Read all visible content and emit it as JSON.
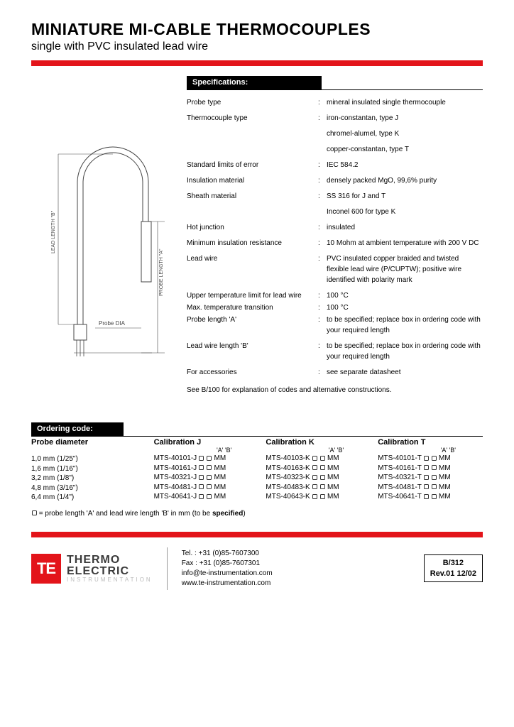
{
  "title": "MINIATURE MI-CABLE THERMOCOUPLES",
  "subtitle": "single with PVC insulated lead wire",
  "diagram": {
    "lead_label": "LEAD LENGTH \"B\"",
    "probe_label": "PROBE LENGTH \"A\"",
    "dia_label": "Probe DIA"
  },
  "specs": {
    "heading": "Specifications:",
    "rows": [
      {
        "label": "Probe type",
        "value": "mineral insulated single thermocouple"
      },
      {
        "label": "Thermocouple type",
        "value": "iron-constantan, type J"
      },
      {
        "label": "",
        "value": "chromel-alumel, type K"
      },
      {
        "label": "",
        "value": "copper-constantan, type T"
      },
      {
        "label": "Standard limits of error",
        "value": "IEC 584.2"
      },
      {
        "label": "Insulation material",
        "value": "densely packed MgO, 99,6% purity"
      },
      {
        "label": "Sheath material",
        "value": "SS 316 for J and T"
      },
      {
        "label": "",
        "value": "Inconel 600 for type K"
      },
      {
        "label": "Hot junction",
        "value": "insulated"
      },
      {
        "label": "Minimum insulation resistance",
        "value": "10 Mohm at ambient temperature with 200 V DC"
      },
      {
        "label": "Lead wire",
        "value": "PVC insulated copper braided and twisted flexible lead wire (P/CUPTW); positive wire identified with polarity mark"
      },
      {
        "label": "Upper temperature limit for lead wire",
        "value": "100 °C"
      },
      {
        "label": "Max. temperature transition",
        "value": "100 °C"
      },
      {
        "label": "Probe length 'A'",
        "value": "to be specified; replace box in ordering code with your required length"
      },
      {
        "label": "Lead wire length 'B'",
        "value": "to be specified; replace box in ordering code with your required length"
      },
      {
        "label": "For accessories",
        "value": "see separate datasheet"
      }
    ],
    "note": "See B/100 for explanation of codes and alternative constructions."
  },
  "ordering": {
    "heading": "Ordering code:",
    "diam_head": "Probe diameter",
    "calJ_head": "Calibration J",
    "calK_head": "Calibration K",
    "calT_head": "Calibration T",
    "ab_label": "'A'  'B'",
    "diameters": [
      {
        "mm": "1,0 mm",
        "in": "(1/25\")"
      },
      {
        "mm": "1,6 mm",
        "in": "(1/16\")"
      },
      {
        "mm": "3,2 mm",
        "in": "(1/8\")"
      },
      {
        "mm": "4,8 mm",
        "in": "(3/16\")"
      },
      {
        "mm": "6,4 mm",
        "in": "(1/4\")"
      }
    ],
    "calJ": [
      "MTS-40101-J",
      "MTS-40161-J",
      "MTS-40321-J",
      "MTS-40481-J",
      "MTS-40641-J"
    ],
    "calK": [
      "MTS-40103-K",
      "MTS-40163-K",
      "MTS-40323-K",
      "MTS-40483-K",
      "MTS-40643-K"
    ],
    "calT": [
      "MTS-40101-T",
      "MTS-40161-T",
      "MTS-40321-T",
      "MTS-40481-T",
      "MTS-40641-T"
    ],
    "mm_suffix": " MM",
    "footnote_prefix": "▢ = probe length 'A' and lead wire length 'B' in mm (to be ",
    "footnote_bold": "specified",
    "footnote_suffix": ")"
  },
  "footer": {
    "logo_te": "TE",
    "logo_line1": "THERMO",
    "logo_line2": "ELECTRIC",
    "logo_sub": "INSTRUMENTATION",
    "tel": "Tel. : +31 (0)85-7607300",
    "fax": "Fax : +31 (0)85-7607301",
    "email": "info@te-instrumentation.com",
    "web": "www.te-instrumentation.com",
    "doc_code": "B/312",
    "doc_rev": "Rev.01  12/02"
  }
}
